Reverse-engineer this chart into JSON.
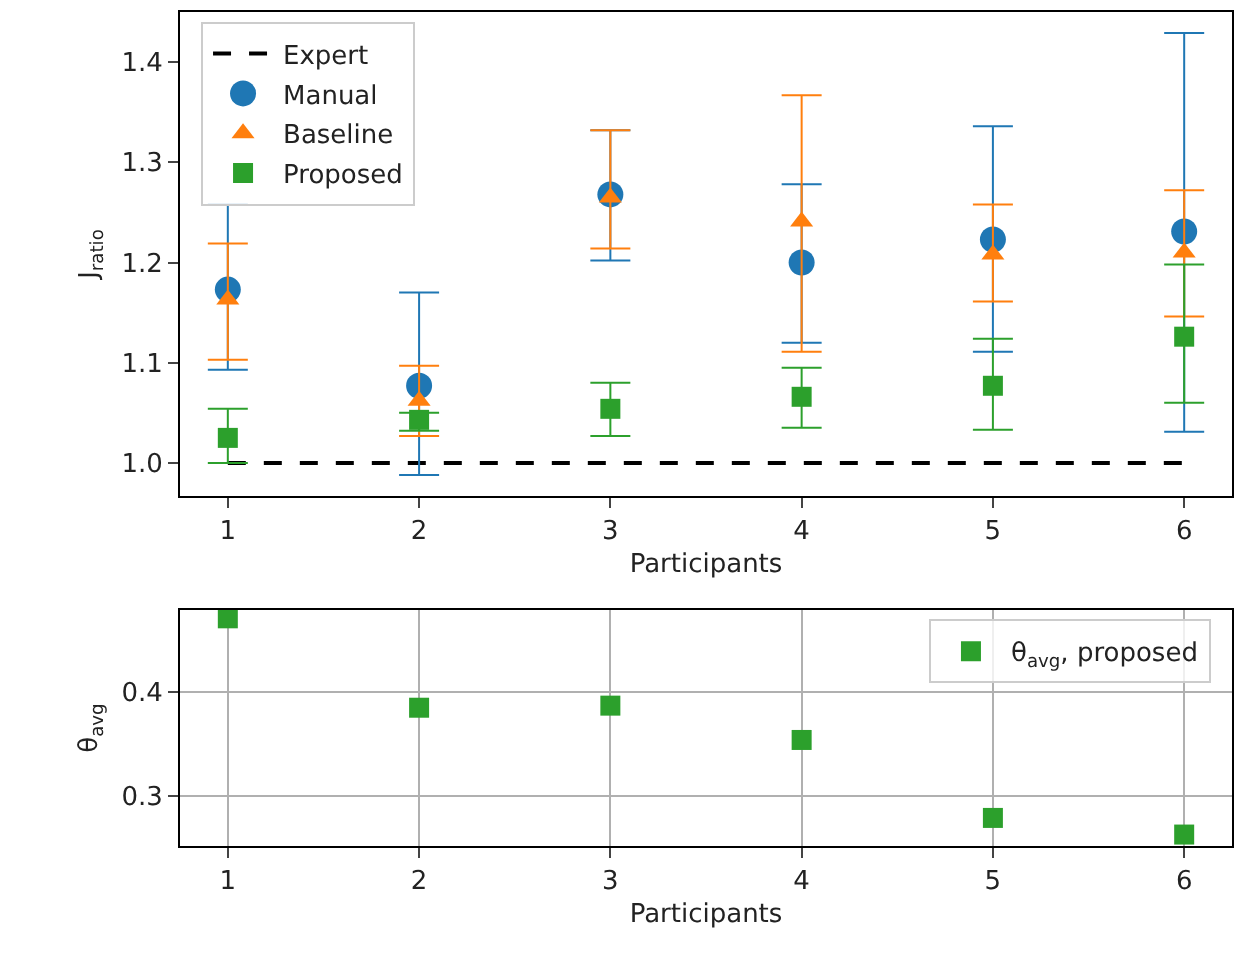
{
  "chart_data": [
    {
      "type": "scatter",
      "ylabel": "J$_{ratio}$",
      "xlabel": "Participants",
      "x": [
        1,
        2,
        3,
        4,
        5,
        6
      ],
      "xlim": [
        0.75,
        6.25
      ],
      "xticks": [
        1,
        2,
        3,
        4,
        5,
        6
      ],
      "ylim": [
        0.967,
        1.45
      ],
      "yticks": [
        {
          "value": 1,
          "label": "1.0"
        },
        1.1,
        1.2,
        1.3,
        1.4
      ],
      "grid": false,
      "legend": "top left",
      "series": [
        {
          "name": "Expert",
          "type": "line",
          "color": "#000000",
          "line_style": "dashed",
          "marker": "none",
          "values": [
            1.0,
            1.0,
            1.0,
            1.0,
            1.0,
            1.0
          ]
        },
        {
          "name": "Manual",
          "color": "#1f77b4",
          "marker": "circle",
          "values": [
            1.173,
            1.077,
            1.268,
            1.2,
            1.223,
            1.231
          ],
          "errors": [
            [
              1.093,
              1.258
            ],
            [
              0.988,
              1.17
            ],
            [
              1.202,
              1.332
            ],
            [
              1.12,
              1.278
            ],
            [
              1.111,
              1.336
            ],
            [
              1.031,
              1.429
            ]
          ]
        },
        {
          "name": "Baseline",
          "color": "#ff7f0e",
          "marker": "triangle",
          "values": [
            1.163,
            1.062,
            1.265,
            1.241,
            1.208,
            1.21
          ],
          "errors": [
            [
              1.103,
              1.219
            ],
            [
              1.027,
              1.097
            ],
            [
              1.214,
              1.332
            ],
            [
              1.111,
              1.367
            ],
            [
              1.161,
              1.258
            ],
            [
              1.146,
              1.272
            ]
          ]
        },
        {
          "name": "Proposed",
          "color": "#2ca02c",
          "marker": "square",
          "values": [
            1.025,
            1.043,
            1.054,
            1.066,
            1.077,
            1.126
          ],
          "errors": [
            [
              1.0,
              1.054
            ],
            [
              1.032,
              1.05
            ],
            [
              1.027,
              1.08
            ],
            [
              1.035,
              1.095
            ],
            [
              1.033,
              1.124
            ],
            [
              1.06,
              1.198
            ]
          ]
        }
      ]
    },
    {
      "type": "scatter",
      "ylabel": "θ$_{avg}$",
      "xlabel": "Participants",
      "x": [
        1,
        2,
        3,
        4,
        5,
        6
      ],
      "xlim": [
        0.75,
        6.25
      ],
      "xticks": [
        1,
        2,
        3,
        4,
        5,
        6
      ],
      "ylim": [
        0.252,
        0.479
      ],
      "yticks": [
        0.3,
        0.4
      ],
      "grid": true,
      "legend": "top right",
      "series": [
        {
          "name": "θ$_{avg}$, proposed",
          "color": "#2ca02c",
          "marker": "square",
          "values": [
            0.471,
            0.385,
            0.387,
            0.354,
            0.279,
            0.263
          ]
        }
      ]
    }
  ]
}
